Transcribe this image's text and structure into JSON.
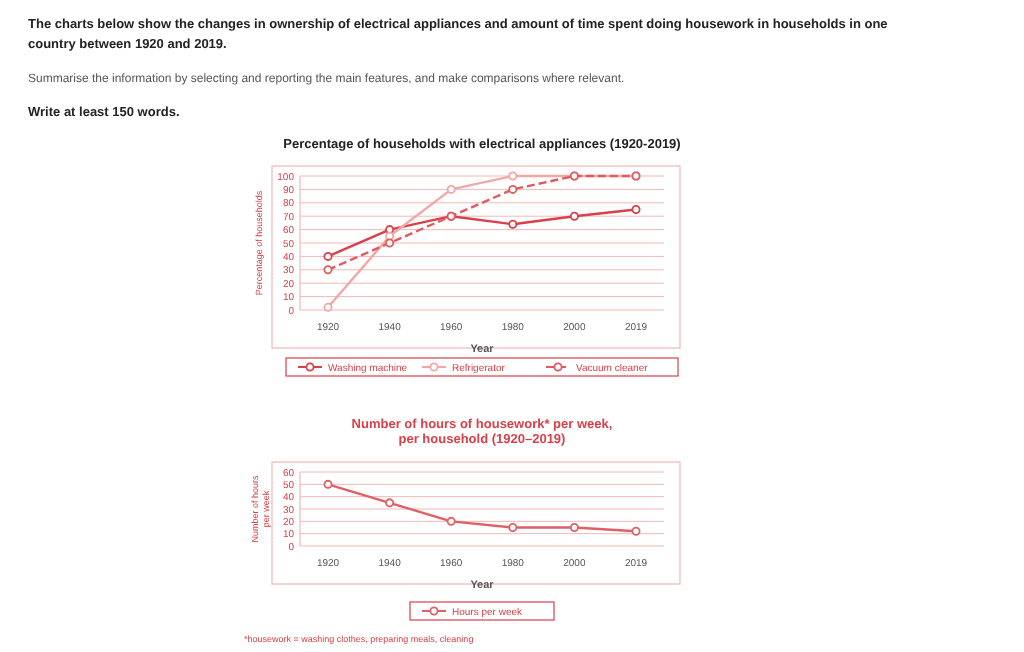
{
  "chart_data": [
    {
      "type": "line",
      "title": "Percentage of households with electrical appliances (1920-2019)",
      "xlabel": "Year",
      "ylabel": "Percentage of households",
      "categories": [
        "1920",
        "1940",
        "1960",
        "1980",
        "2000",
        "2019"
      ],
      "ylim": [
        0,
        100
      ],
      "yticks": [
        0,
        10,
        20,
        30,
        40,
        50,
        60,
        70,
        80,
        90,
        100
      ],
      "grid": "y",
      "legend": "bottom",
      "marker": "circle",
      "annotations": [
        "The charts below show the changes in ownership of electrical appliances and amount of time spent doing housework in households in one country between 1920 and 2019.",
        "Summarise the information by selecting and reporting the main features, and make comparisons where relevant.",
        "Write at least 150 words."
      ],
      "series": [
        {
          "name": "Washing machine",
          "color": "#d8404a",
          "values": [
            40,
            60,
            70,
            64,
            70,
            75
          ],
          "line_style": "solid"
        },
        {
          "name": "Refrigerator",
          "color": "#f2a6a6",
          "values": [
            2,
            55,
            90,
            100,
            100,
            100
          ],
          "line_style": "solid"
        },
        {
          "name": "Vacuum cleaner",
          "color": "#e05a60",
          "values": [
            30,
            50,
            70,
            90,
            100,
            100
          ],
          "line_style": "dashed"
        }
      ]
    },
    {
      "type": "line",
      "title": "Number of hours of housework* per week, per household (1920–2019)",
      "xlabel": "Year",
      "ylabel": "Number of hours per week",
      "categories": [
        "1920",
        "1940",
        "1960",
        "1980",
        "2000",
        "2019"
      ],
      "ylim": [
        0,
        60
      ],
      "yticks": [
        0,
        10,
        20,
        30,
        40,
        50,
        60
      ],
      "grid": "y",
      "legend": "bottom",
      "marker": "circle",
      "annotations": [
        "*housework = washing clothes, preparing meals, cleaning"
      ],
      "series": [
        {
          "name": "Hours per week",
          "color": "#e06068",
          "values": [
            50,
            35,
            20,
            15,
            15,
            12
          ],
          "line_style": "solid"
        }
      ]
    }
  ]
}
